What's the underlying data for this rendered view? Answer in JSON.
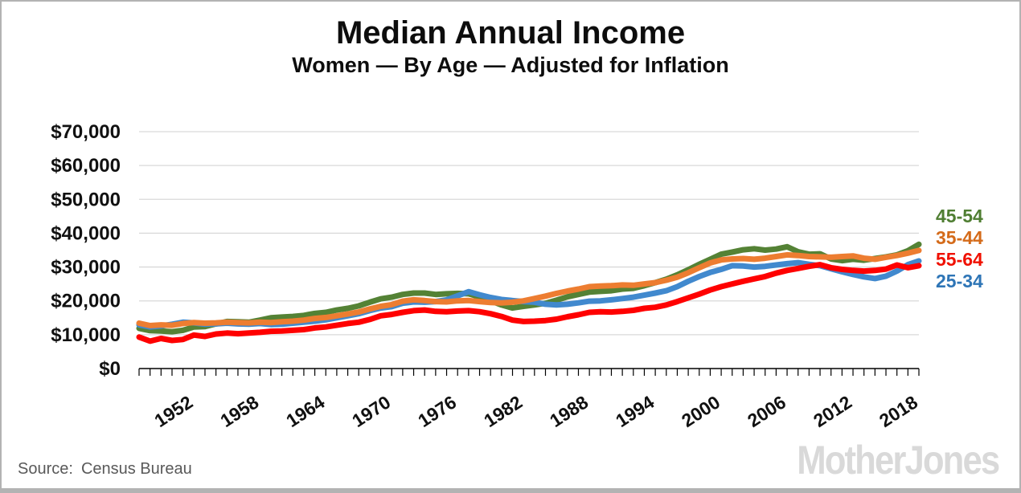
{
  "title": "Median Annual Income",
  "subtitle": "Women — By Age — Adjusted for Inflation",
  "source": {
    "label": "Source:",
    "value": "Census Bureau"
  },
  "branding": "MotherJones",
  "colors": {
    "grid": "#d9d9d9",
    "axis": "#000000",
    "tick_text": "#111111",
    "source_text": "#595959",
    "brand_text": "#d9d9d9",
    "frame_border": "#b3b3b3"
  },
  "chart_data": {
    "type": "line",
    "title": "Median Annual Income",
    "subtitle": "Women — By Age — Adjusted for Inflation",
    "xlabel": "",
    "ylabel": "",
    "xlim": [
      1948,
      2019
    ],
    "ylim": [
      0,
      70000
    ],
    "ytick_step": 10000,
    "grid": "horizontal",
    "legend_position": "right",
    "ytick_labels": [
      "$0",
      "$10,000",
      "$20,000",
      "$30,000",
      "$40,000",
      "$50,000",
      "$60,000",
      "$70,000"
    ],
    "xtick_labels": [
      "1952",
      "1958",
      "1964",
      "1970",
      "1976",
      "1982",
      "1988",
      "1994",
      "2000",
      "2006",
      "2012",
      "2018"
    ],
    "xtick_years": [
      1952,
      1958,
      1964,
      1970,
      1976,
      1982,
      1988,
      1994,
      2000,
      2006,
      2012,
      2018
    ],
    "years": [
      1948,
      1949,
      1950,
      1951,
      1952,
      1953,
      1954,
      1955,
      1956,
      1957,
      1958,
      1959,
      1960,
      1961,
      1962,
      1963,
      1964,
      1965,
      1966,
      1967,
      1968,
      1969,
      1970,
      1971,
      1972,
      1973,
      1974,
      1975,
      1976,
      1977,
      1978,
      1979,
      1980,
      1981,
      1982,
      1983,
      1984,
      1985,
      1986,
      1987,
      1988,
      1989,
      1990,
      1991,
      1992,
      1993,
      1994,
      1995,
      1996,
      1997,
      1998,
      1999,
      2000,
      2001,
      2002,
      2003,
      2004,
      2005,
      2006,
      2007,
      2008,
      2009,
      2010,
      2011,
      2012,
      2013,
      2014,
      2015,
      2016,
      2017,
      2018,
      2019
    ],
    "draw_order": [
      0,
      3,
      1,
      2
    ],
    "series": [
      {
        "name": "45-54",
        "color": "#548235",
        "label_color": "#4f7e32",
        "values": [
          11900,
          11200,
          11100,
          10900,
          11300,
          12300,
          12400,
          13200,
          13900,
          13800,
          13700,
          14300,
          15000,
          15200,
          15400,
          15700,
          16300,
          16600,
          17300,
          17800,
          18500,
          19600,
          20600,
          21100,
          21900,
          22300,
          22300,
          21900,
          22100,
          22200,
          22100,
          21200,
          20000,
          18800,
          17900,
          18400,
          18800,
          19300,
          20200,
          21200,
          21900,
          22600,
          22800,
          23000,
          23500,
          23700,
          24500,
          25400,
          26400,
          27700,
          29200,
          30800,
          32300,
          33800,
          34400,
          35100,
          35400,
          35000,
          35300,
          36000,
          34500,
          33800,
          33900,
          32400,
          31900,
          32300,
          32000,
          32500,
          33000,
          33600,
          34800,
          36700
        ]
      },
      {
        "name": "35-44",
        "color": "#ED7D31",
        "label_color": "#d46b1a",
        "values": [
          13400,
          12700,
          12900,
          12800,
          13300,
          13600,
          13400,
          13500,
          13700,
          13600,
          13500,
          13700,
          13600,
          13800,
          14000,
          14300,
          14800,
          15100,
          15600,
          16100,
          16700,
          17600,
          18400,
          18900,
          19900,
          20300,
          20100,
          19800,
          19700,
          20000,
          20100,
          19800,
          19500,
          19400,
          19600,
          20000,
          20700,
          21400,
          22200,
          22900,
          23500,
          24200,
          24400,
          24500,
          24700,
          24600,
          25000,
          25400,
          26100,
          27000,
          28300,
          29800,
          31200,
          32100,
          32400,
          32500,
          32300,
          32600,
          33100,
          33600,
          33400,
          33100,
          33000,
          32900,
          33100,
          33300,
          32600,
          32300,
          32900,
          33400,
          34100,
          34900
        ]
      },
      {
        "name": "55-64",
        "color": "#FF0000",
        "label_color": "#f01000",
        "values": [
          9300,
          8100,
          8900,
          8300,
          8600,
          9900,
          9500,
          10200,
          10500,
          10300,
          10500,
          10700,
          11000,
          11100,
          11300,
          11500,
          12000,
          12300,
          12800,
          13300,
          13700,
          14500,
          15600,
          16000,
          16600,
          17100,
          17300,
          16900,
          16800,
          17000,
          17100,
          16800,
          16200,
          15400,
          14300,
          13900,
          14000,
          14200,
          14600,
          15300,
          15900,
          16600,
          16800,
          16700,
          16900,
          17200,
          17800,
          18100,
          18800,
          19800,
          20900,
          22000,
          23200,
          24200,
          25000,
          25800,
          26500,
          27200,
          28200,
          29000,
          29600,
          30200,
          30700,
          29800,
          29300,
          29000,
          28800,
          29000,
          29400,
          30600,
          29800,
          30400
        ]
      },
      {
        "name": "25-34",
        "color": "#4189CE",
        "label_color": "#2E75B6",
        "values": [
          12900,
          12300,
          12600,
          13100,
          13700,
          13500,
          13100,
          13200,
          13400,
          13200,
          13100,
          13300,
          13000,
          13100,
          13400,
          13700,
          14000,
          14400,
          15000,
          15600,
          16200,
          17100,
          17900,
          18300,
          19300,
          19700,
          19600,
          19800,
          20300,
          21500,
          22700,
          21800,
          21000,
          20400,
          20100,
          19800,
          19600,
          19000,
          18800,
          19000,
          19400,
          19900,
          20000,
          20300,
          20700,
          21100,
          21700,
          22300,
          23000,
          24200,
          25800,
          27200,
          28400,
          29300,
          30400,
          30300,
          30000,
          30200,
          30600,
          31000,
          31300,
          30800,
          30400,
          29500,
          28600,
          27800,
          27100,
          26600,
          27300,
          28800,
          30700,
          31800
        ]
      }
    ]
  }
}
